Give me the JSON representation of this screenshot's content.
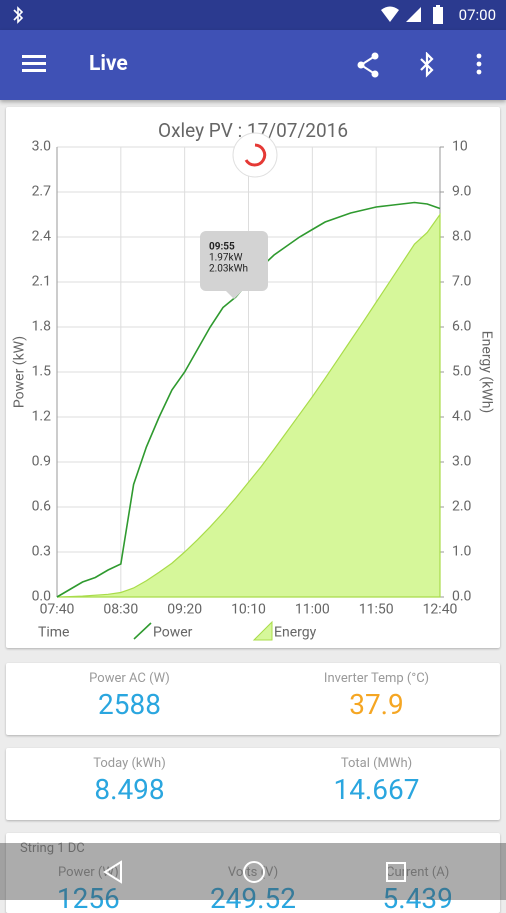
{
  "status_bar": {
    "time": "07:00"
  },
  "app_bar": {
    "title": "Live"
  },
  "chart_data": {
    "type": "line",
    "title": "Oxley PV : 17/07/2016",
    "x_axis_label": "Time",
    "y_axis_label": "Power (kW)",
    "y2_axis_label": "Energy (kWh)",
    "x": [
      "07:40",
      "07:50",
      "08:00",
      "08:10",
      "08:20",
      "08:30",
      "08:40",
      "08:50",
      "09:00",
      "09:10",
      "09:20",
      "09:30",
      "09:40",
      "09:50",
      "10:00",
      "10:10",
      "10:20",
      "10:30",
      "10:40",
      "10:50",
      "11:00",
      "11:10",
      "11:20",
      "11:30",
      "11:40",
      "11:50",
      "12:00",
      "12:10",
      "12:20",
      "12:30",
      "12:40"
    ],
    "xlim": [
      "07:40",
      "12:40"
    ],
    "xticks": [
      "07:40",
      "08:30",
      "09:20",
      "10:10",
      "11:00",
      "11:50",
      "12:40"
    ],
    "series": [
      {
        "name": "Power",
        "color": "#2f9a2f",
        "values": [
          0.0,
          0.05,
          0.1,
          0.13,
          0.18,
          0.22,
          0.75,
          1.0,
          1.2,
          1.38,
          1.5,
          1.65,
          1.8,
          1.93,
          2.0,
          2.1,
          2.2,
          2.28,
          2.34,
          2.4,
          2.45,
          2.5,
          2.53,
          2.56,
          2.58,
          2.6,
          2.61,
          2.62,
          2.63,
          2.62,
          2.59
        ]
      },
      {
        "name": "Energy",
        "color": "#d6f79a",
        "axis": "y2",
        "values": [
          0.0,
          0.01,
          0.02,
          0.04,
          0.06,
          0.1,
          0.2,
          0.36,
          0.55,
          0.75,
          1.0,
          1.27,
          1.56,
          1.87,
          2.2,
          2.55,
          2.9,
          3.28,
          3.67,
          4.06,
          4.45,
          4.86,
          5.28,
          5.7,
          6.12,
          6.55,
          6.98,
          7.41,
          7.84,
          8.1,
          8.5
        ]
      }
    ],
    "ylim": [
      0,
      3
    ],
    "yticks": [
      {
        "value": 0,
        "label": "0.0"
      },
      0.3,
      0.6,
      0.9,
      1.2,
      1.5,
      1.8,
      2.1,
      2.4,
      2.7,
      {
        "value": 3,
        "label": "3.0"
      }
    ],
    "y2lim": [
      0,
      10
    ],
    "y2ticks": [
      {
        "value": 0,
        "label": "0.0"
      },
      {
        "value": 1,
        "label": "1.0"
      },
      {
        "value": 2,
        "label": "2.0"
      },
      {
        "value": 3,
        "label": "3.0"
      },
      {
        "value": 4,
        "label": "4.0"
      },
      {
        "value": 5,
        "label": "5.0"
      },
      {
        "value": 6,
        "label": "6.0"
      },
      {
        "value": 7,
        "label": "7.0"
      },
      {
        "value": 8,
        "label": "8.0"
      },
      {
        "value": 9,
        "label": "9.0"
      },
      10
    ],
    "grid": true,
    "tooltip": [
      "09:55",
      "1.97kW",
      "2.03kWh"
    ]
  },
  "cards": [
    {
      "items": [
        {
          "label": "Power AC (W)",
          "value": "2588"
        },
        {
          "label": "Inverter Temp (°C)",
          "value": "37.9"
        }
      ]
    },
    {
      "items": [
        {
          "label": "Today (kWh)",
          "value": "8.498"
        },
        {
          "label": "Total (MWh)",
          "value": "14.667"
        }
      ]
    },
    {
      "title": "String 1 DC",
      "items": [
        {
          "label": "Power (W)",
          "value": "1256"
        },
        {
          "label": "Volts (V)",
          "value": "249.52"
        },
        {
          "label": "Current (A)",
          "value": "5.439"
        }
      ]
    }
  ]
}
